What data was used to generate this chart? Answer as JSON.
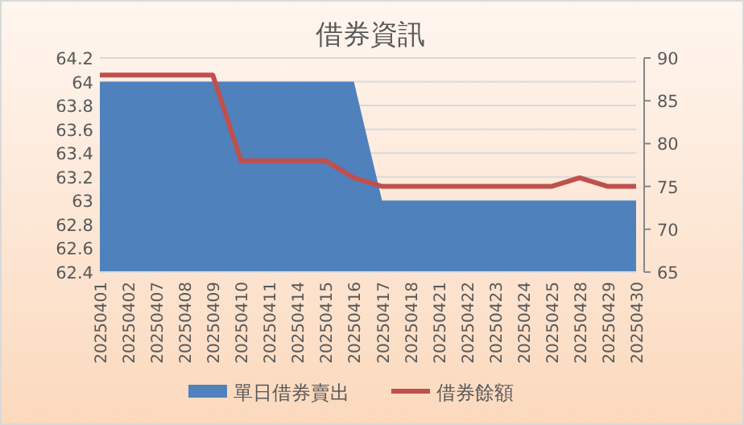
{
  "chart_data": {
    "type": "area",
    "title": "借券資訊",
    "categories": [
      "20250401",
      "20250402",
      "20250407",
      "20250408",
      "20250409",
      "20250410",
      "20250411",
      "20250414",
      "20250415",
      "20250416",
      "20250417",
      "20250418",
      "20250421",
      "20250422",
      "20250423",
      "20250424",
      "20250425",
      "20250428",
      "20250429",
      "20250430"
    ],
    "series": [
      {
        "name": "單日借券賣出",
        "color": "#4f81bd",
        "values": [
          64,
          64,
          64,
          64,
          64,
          64,
          64,
          64,
          64,
          64,
          63,
          63,
          63,
          63,
          63,
          63,
          63,
          63,
          63,
          63
        ]
      },
      {
        "name": "借券餘額",
        "type": "line",
        "color": "#c0504d",
        "axis": "y2",
        "values": [
          88,
          88,
          88,
          88,
          88,
          78,
          78,
          78,
          78,
          76,
          75,
          75,
          75,
          75,
          75,
          75,
          75,
          76,
          75,
          75
        ]
      }
    ],
    "ylim": [
      62.4,
      64.2
    ],
    "yticks": [
      62.4,
      62.6,
      62.8,
      63,
      63.2,
      63.4,
      63.6,
      63.8,
      64,
      64.2
    ],
    "y2lim": [
      65,
      90
    ],
    "y2ticks": [
      65,
      70,
      75,
      80,
      85,
      90
    ],
    "grid": "y",
    "legend": "bottom",
    "marker": "none"
  }
}
